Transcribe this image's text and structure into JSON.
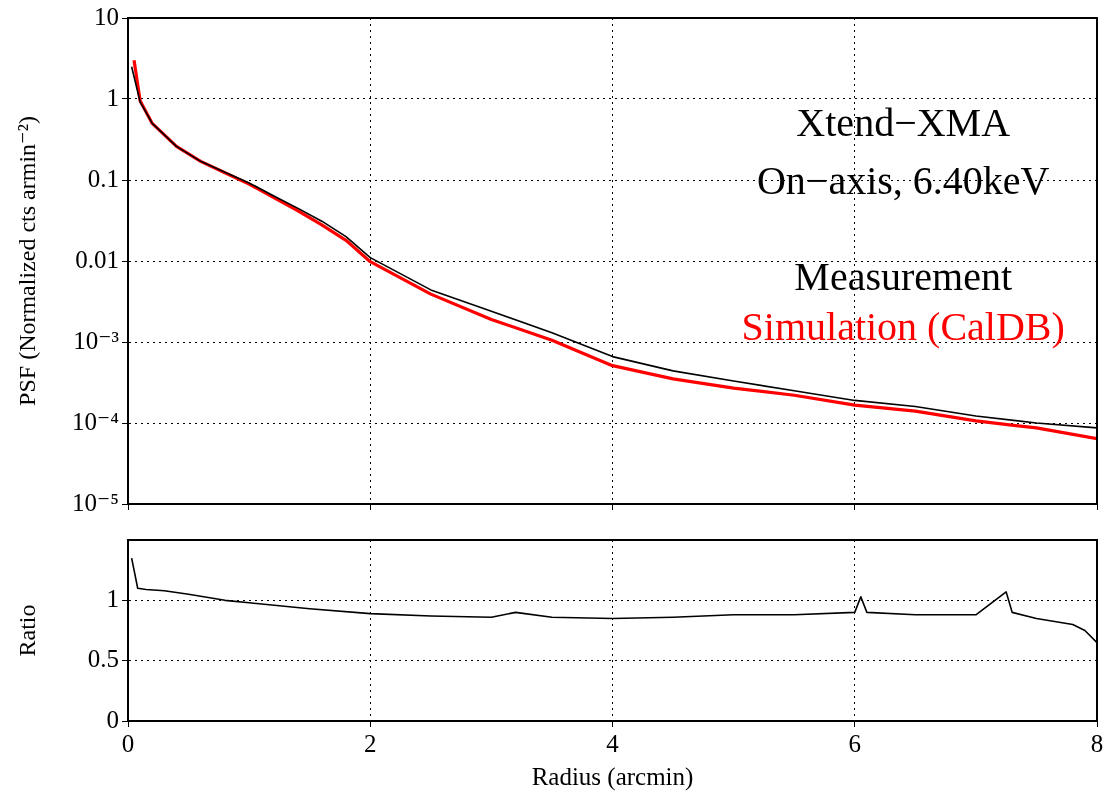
{
  "chart_data": [
    {
      "type": "line",
      "ylabel": "PSF (Normalized cts armin⁻²)",
      "annotations": [
        "Xtend−XMA",
        "On−axis, 6.40keV"
      ],
      "xlim": [
        0,
        8
      ],
      "xticks": [
        0,
        2,
        4,
        6,
        8
      ],
      "ylim": [
        1e-05,
        10
      ],
      "log": true,
      "yticks": [
        {
          "value": 10,
          "label": "10"
        },
        {
          "value": 1,
          "label": "1"
        },
        {
          "value": 0.1,
          "label": "0.1"
        },
        {
          "value": 0.01,
          "label": "0.01"
        },
        {
          "value": 0.001,
          "label": "10⁻³"
        },
        {
          "value": 0.0001,
          "label": "10⁻⁴"
        },
        {
          "value": 1e-05,
          "label": "10⁻⁵"
        }
      ],
      "grid": true,
      "legend": "right",
      "tick_labels": "y",
      "marker": "none",
      "line_style": "solid",
      "series": [
        {
          "name": "Measurement",
          "color": "#000000",
          "x": [
            0.03,
            0.1,
            0.2,
            0.4,
            0.6,
            0.8,
            1.0,
            1.2,
            1.4,
            1.6,
            1.8,
            2.0,
            2.5,
            3.0,
            3.5,
            4.0,
            4.5,
            5.0,
            5.5,
            6.0,
            6.5,
            7.0,
            7.5,
            8.0
          ],
          "values": [
            2.5,
            0.92,
            0.5,
            0.26,
            0.17,
            0.125,
            0.092,
            0.064,
            0.045,
            0.031,
            0.02,
            0.011,
            0.0044,
            0.0024,
            0.0013,
            0.00066,
            0.00044,
            0.00033,
            0.00025,
            0.00019,
            0.00016,
            0.000122,
            0.0001,
            8.7e-05
          ]
        },
        {
          "name": "Simulation (CalDB)",
          "color": "#ff0000",
          "x": [
            0.05,
            0.1,
            0.2,
            0.4,
            0.6,
            0.8,
            1.0,
            1.2,
            1.4,
            1.6,
            1.8,
            2.0,
            2.5,
            3.0,
            3.5,
            4.0,
            4.5,
            5.0,
            5.5,
            6.0,
            6.5,
            7.0,
            7.5,
            8.0
          ],
          "values": [
            3.0,
            0.95,
            0.5,
            0.26,
            0.17,
            0.123,
            0.089,
            0.061,
            0.042,
            0.028,
            0.018,
            0.0098,
            0.0039,
            0.0019,
            0.00105,
            0.00051,
            0.00035,
            0.00027,
            0.00022,
            0.000166,
            0.00014,
            0.000106,
            8.7e-05,
            6.4e-05
          ]
        }
      ]
    },
    {
      "type": "line",
      "xlabel": "Radius (arcmin)",
      "ylabel": "Ratio",
      "xlim": [
        0,
        8
      ],
      "xticks": [
        0,
        2,
        4,
        6,
        8
      ],
      "ylim": [
        0,
        1.5
      ],
      "yticks": [
        0,
        0.5,
        1
      ],
      "grid": true,
      "marker": "none",
      "line_style": "solid",
      "series": [
        {
          "color": "#000000",
          "x": [
            0.03,
            0.05,
            0.08,
            0.15,
            0.3,
            0.5,
            0.8,
            1.0,
            1.5,
            2.0,
            2.5,
            3.0,
            3.2,
            3.5,
            4.0,
            4.5,
            5.0,
            5.5,
            6.0,
            6.05,
            6.1,
            6.5,
            7.0,
            7.25,
            7.3,
            7.5,
            7.8,
            7.9,
            8.0
          ],
          "values": [
            1.35,
            1.25,
            1.1,
            1.09,
            1.08,
            1.05,
            1.0,
            0.98,
            0.93,
            0.89,
            0.87,
            0.86,
            0.9,
            0.86,
            0.85,
            0.86,
            0.88,
            0.88,
            0.9,
            1.03,
            0.9,
            0.88,
            0.88,
            1.07,
            0.9,
            0.85,
            0.8,
            0.75,
            0.65
          ]
        }
      ]
    }
  ]
}
